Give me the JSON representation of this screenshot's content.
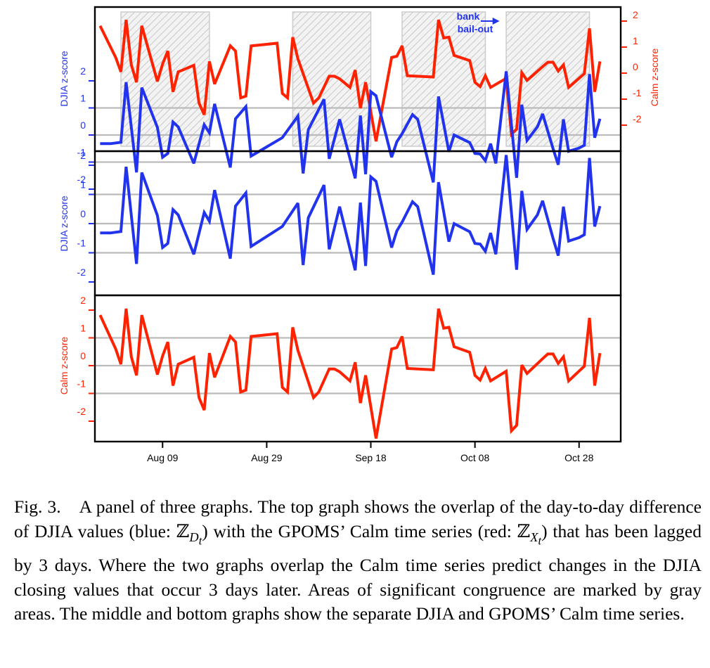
{
  "colors": {
    "djia": "#2233ee",
    "calm": "#ff2200",
    "hatch": "#cccccc",
    "grid": "#bbbbbb"
  },
  "chart_data": [
    {
      "panel": "top",
      "type": "line",
      "left_axis_label": "DJIA z-score",
      "right_axis_label": "Calm z-score",
      "yticks": [
        "-2",
        "-1",
        "0",
        "1",
        "2"
      ],
      "ylim": [
        -2.65,
        2.35
      ],
      "xlim": [
        "2008-07-27",
        "2008-11-05"
      ],
      "shaded_regions": [
        [
          "2008-08-01",
          "2008-08-18"
        ],
        [
          "2008-09-03",
          "2008-09-18"
        ],
        [
          "2008-09-24",
          "2008-10-10"
        ],
        [
          "2008-10-14",
          "2008-10-30"
        ]
      ],
      "annotation": {
        "line1": "bank",
        "line2": "bail-out",
        "date": "2008-10-13",
        "value": 2.3
      },
      "series": [
        {
          "color": "djia",
          "axis": "left"
        },
        {
          "color": "calm",
          "axis": "right"
        }
      ]
    },
    {
      "panel": "middle",
      "type": "line",
      "ylabel": "DJIA z-score",
      "yticks": [
        "-2",
        "-1",
        "0",
        "1",
        "2"
      ],
      "ylim": [
        -2.65,
        2.35
      ],
      "series": [
        {
          "color": "djia"
        }
      ]
    },
    {
      "panel": "bottom",
      "type": "line",
      "ylabel": "Calm z-score",
      "yticks": [
        "-2",
        "-1",
        "0",
        "1",
        "2"
      ],
      "ylim": [
        -2.95,
        2.45
      ],
      "xticks": [
        {
          "date": "2008-08-09",
          "label": "Aug 09"
        },
        {
          "date": "2008-08-29",
          "label": "Aug 29"
        },
        {
          "date": "2008-09-18",
          "label": "Sep 18"
        },
        {
          "date": "2008-10-08",
          "label": "Oct 08"
        },
        {
          "date": "2008-10-28",
          "label": "Oct 28"
        }
      ],
      "series": [
        {
          "color": "calm"
        }
      ]
    }
  ],
  "djia": [
    [
      "2008-07-28",
      -0.32
    ],
    [
      "2008-07-30",
      -0.32
    ],
    [
      "2008-08-01",
      -0.27
    ],
    [
      "2008-08-02",
      1.95
    ],
    [
      "2008-08-04",
      -1.38
    ],
    [
      "2008-08-05",
      1.75
    ],
    [
      "2008-08-08",
      0.28
    ],
    [
      "2008-08-09",
      -0.82
    ],
    [
      "2008-08-10",
      -0.68
    ],
    [
      "2008-08-11",
      0.48
    ],
    [
      "2008-08-12",
      0.3
    ],
    [
      "2008-08-15",
      -1.05
    ],
    [
      "2008-08-17",
      0.38
    ],
    [
      "2008-08-18",
      0.08
    ],
    [
      "2008-08-19",
      1.15
    ],
    [
      "2008-08-22",
      -1.2
    ],
    [
      "2008-08-23",
      0.6
    ],
    [
      "2008-08-25",
      1.05
    ],
    [
      "2008-08-26",
      -0.78
    ],
    [
      "2008-09-01",
      -0.1
    ],
    [
      "2008-09-04",
      0.7
    ],
    [
      "2008-09-05",
      -1.42
    ],
    [
      "2008-09-06",
      0.2
    ],
    [
      "2008-09-09",
      1.32
    ],
    [
      "2008-09-10",
      -0.88
    ],
    [
      "2008-09-12",
      0.58
    ],
    [
      "2008-09-15",
      -1.6
    ],
    [
      "2008-09-16",
      0.72
    ],
    [
      "2008-09-17",
      -1.45
    ],
    [
      "2008-09-18",
      1.6
    ],
    [
      "2008-09-19",
      1.45
    ],
    [
      "2008-09-22",
      -0.82
    ],
    [
      "2008-09-23",
      -0.25
    ],
    [
      "2008-09-24",
      0.05
    ],
    [
      "2008-09-26",
      0.75
    ],
    [
      "2008-09-27",
      0.58
    ],
    [
      "2008-09-30",
      -1.75
    ],
    [
      "2008-10-01",
      1.42
    ],
    [
      "2008-10-03",
      -0.62
    ],
    [
      "2008-10-04",
      0.0
    ],
    [
      "2008-10-07",
      -0.28
    ],
    [
      "2008-10-08",
      -0.68
    ],
    [
      "2008-10-09",
      -0.7
    ],
    [
      "2008-10-10",
      -0.95
    ],
    [
      "2008-10-11",
      -0.32
    ],
    [
      "2008-10-12",
      -1.05
    ],
    [
      "2008-10-13",
      0.65
    ],
    [
      "2008-10-14",
      2.35
    ],
    [
      "2008-10-16",
      -1.58
    ],
    [
      "2008-10-17",
      1.12
    ],
    [
      "2008-10-18",
      -0.2
    ],
    [
      "2008-10-20",
      0.3
    ],
    [
      "2008-10-21",
      0.78
    ],
    [
      "2008-10-23",
      -0.5
    ],
    [
      "2008-10-24",
      -1.1
    ],
    [
      "2008-10-25",
      0.58
    ],
    [
      "2008-10-26",
      -0.6
    ],
    [
      "2008-10-28",
      -0.48
    ],
    [
      "2008-10-29",
      -0.38
    ],
    [
      "2008-10-30",
      2.25
    ],
    [
      "2008-10-31",
      -0.1
    ],
    [
      "2008-11-01",
      0.6
    ]
  ],
  "calm": [
    [
      "2008-07-28",
      1.82
    ],
    [
      "2008-07-31",
      0.6
    ],
    [
      "2008-08-01",
      0.05
    ],
    [
      "2008-08-02",
      2.05
    ],
    [
      "2008-08-03",
      0.32
    ],
    [
      "2008-08-04",
      -0.35
    ],
    [
      "2008-08-05",
      1.82
    ],
    [
      "2008-08-08",
      -0.32
    ],
    [
      "2008-08-09",
      0.35
    ],
    [
      "2008-08-10",
      0.85
    ],
    [
      "2008-08-11",
      -0.72
    ],
    [
      "2008-08-12",
      0.05
    ],
    [
      "2008-08-15",
      0.3
    ],
    [
      "2008-08-16",
      -1.15
    ],
    [
      "2008-08-17",
      -1.6
    ],
    [
      "2008-08-18",
      0.45
    ],
    [
      "2008-08-19",
      -0.42
    ],
    [
      "2008-08-22",
      1.05
    ],
    [
      "2008-08-23",
      0.85
    ],
    [
      "2008-08-24",
      -0.95
    ],
    [
      "2008-08-25",
      -0.88
    ],
    [
      "2008-08-26",
      1.05
    ],
    [
      "2008-08-31",
      1.15
    ],
    [
      "2008-09-01",
      -0.78
    ],
    [
      "2008-09-02",
      -0.95
    ],
    [
      "2008-09-03",
      1.38
    ],
    [
      "2008-09-04",
      0.55
    ],
    [
      "2008-09-07",
      -1.15
    ],
    [
      "2008-09-08",
      -0.95
    ],
    [
      "2008-09-10",
      -0.12
    ],
    [
      "2008-09-11",
      -0.12
    ],
    [
      "2008-09-12",
      -0.22
    ],
    [
      "2008-09-14",
      -0.55
    ],
    [
      "2008-09-15",
      0.12
    ],
    [
      "2008-09-16",
      -1.35
    ],
    [
      "2008-09-17",
      -0.35
    ],
    [
      "2008-09-19",
      -2.62
    ],
    [
      "2008-09-22",
      0.6
    ],
    [
      "2008-09-23",
      0.65
    ],
    [
      "2008-09-24",
      1.05
    ],
    [
      "2008-09-25",
      -0.1
    ],
    [
      "2008-09-30",
      -0.15
    ],
    [
      "2008-10-01",
      2.05
    ],
    [
      "2008-10-02",
      1.35
    ],
    [
      "2008-10-03",
      1.38
    ],
    [
      "2008-10-04",
      0.68
    ],
    [
      "2008-10-07",
      0.48
    ],
    [
      "2008-10-08",
      -0.35
    ],
    [
      "2008-10-09",
      -0.52
    ],
    [
      "2008-10-10",
      -0.1
    ],
    [
      "2008-10-11",
      -0.55
    ],
    [
      "2008-10-14",
      -0.2
    ],
    [
      "2008-10-15",
      -2.35
    ],
    [
      "2008-10-16",
      -2.15
    ],
    [
      "2008-10-17",
      0.02
    ],
    [
      "2008-10-18",
      -0.28
    ],
    [
      "2008-10-21",
      0.25
    ],
    [
      "2008-10-22",
      0.42
    ],
    [
      "2008-10-23",
      0.42
    ],
    [
      "2008-10-24",
      0.08
    ],
    [
      "2008-10-25",
      0.32
    ],
    [
      "2008-10-26",
      -0.55
    ],
    [
      "2008-10-29",
      -0.02
    ],
    [
      "2008-10-30",
      1.72
    ],
    [
      "2008-10-31",
      -0.72
    ],
    [
      "2008-11-01",
      0.45
    ]
  ],
  "caption": {
    "label": "Fig. 3.",
    "t1": "A panel of three graphs. The top graph shows the overlap of the day-to-day difference of DJIA values (blue: ",
    "sym_z": "ℤ",
    "sub_d": "D",
    "sub_t": "t",
    "t2": ") with the GPOMS’ Calm time series (red: ",
    "sub_x": "X",
    "t3": ") that has been lagged by 3 days. Where the two graphs overlap the Calm time series predict changes in the DJIA closing values that occur 3 days later. Areas of significant congruence are marked by gray areas. The middle and bottom graphs show the separate DJIA and GPOMS’ Calm time series."
  }
}
